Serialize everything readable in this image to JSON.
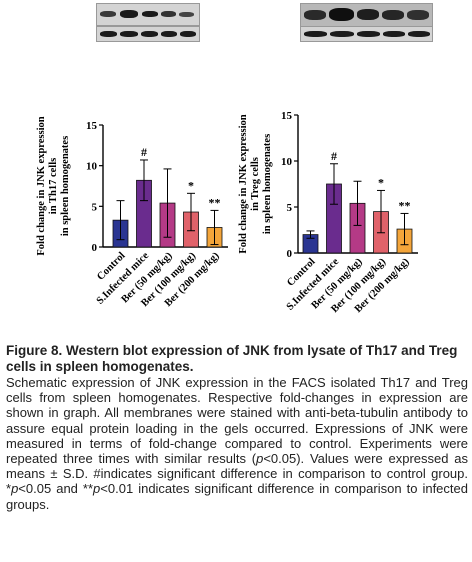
{
  "figure": {
    "title": "Figure 8. Western blot expression of JNK from lysate of Th17 and Treg cells in spleen homogenates.",
    "body_parts": [
      {
        "text": "Schematic expression of JNK expression in the FACS isolated Th17 and Treg cells from spleen homogenates. Respective fold-changes in expression are shown in graph. All membranes were stained with anti-beta-tubulin antibody to assure equal protein loading in the gels occurred. Expressions of JNK were measured in terms of fold-change compared to control. Experiments were repeated three times with similar results (",
        "italic": false
      },
      {
        "text": "p",
        "italic": true
      },
      {
        "text": "<0.05). Values were expressed as means ± S.D. #indicates significant difference in comparison to control group. *",
        "italic": false
      },
      {
        "text": "p",
        "italic": true
      },
      {
        "text": "<0.05 and **",
        "italic": false
      },
      {
        "text": "p",
        "italic": true
      },
      {
        "text": "<0.01 indicates significant difference in comparison to infected groups.",
        "italic": false
      }
    ]
  },
  "chart_data": [
    {
      "type": "bar",
      "ylabel_lines": [
        "Fold change in JNK expression",
        "in Th17 cells",
        "in spleen homogenates"
      ],
      "ylim": [
        0,
        15
      ],
      "yticks": [
        "0",
        "5",
        "10",
        "15"
      ],
      "categories": [
        "Control",
        "S.Infected mice",
        "Ber (50 mg/kg)",
        "Ber (100 mg/kg)",
        "Ber (200 mg/kg)"
      ],
      "values": [
        3.3,
        8.2,
        5.4,
        4.3,
        2.4
      ],
      "errors": [
        2.4,
        2.5,
        4.2,
        2.3,
        2.1
      ],
      "annotations": [
        "",
        "#",
        "",
        "*",
        "**"
      ],
      "colors": [
        "#2a3592",
        "#6a2c8e",
        "#b43a86",
        "#e0626a",
        "#f4a53a"
      ]
    },
    {
      "type": "bar",
      "ylabel_lines": [
        "Fold change in JNK expression",
        "in Treg cells",
        "in spleen homogenates"
      ],
      "ylim": [
        0,
        15
      ],
      "yticks": [
        "0",
        "5",
        "10",
        "15"
      ],
      "categories": [
        "Control",
        "S.Infected mice",
        "Ber (50 mg/kg)",
        "Ber (100 mg/kg)",
        "Ber (200 mg/kg)"
      ],
      "values": [
        2.0,
        7.5,
        5.4,
        4.5,
        2.6
      ],
      "errors": [
        0.4,
        2.2,
        2.4,
        2.3,
        1.7
      ],
      "annotations": [
        "",
        "#",
        "",
        "*",
        "**"
      ],
      "colors": [
        "#2a3592",
        "#6a2c8e",
        "#b43a86",
        "#e0626a",
        "#f4a53a"
      ]
    }
  ]
}
